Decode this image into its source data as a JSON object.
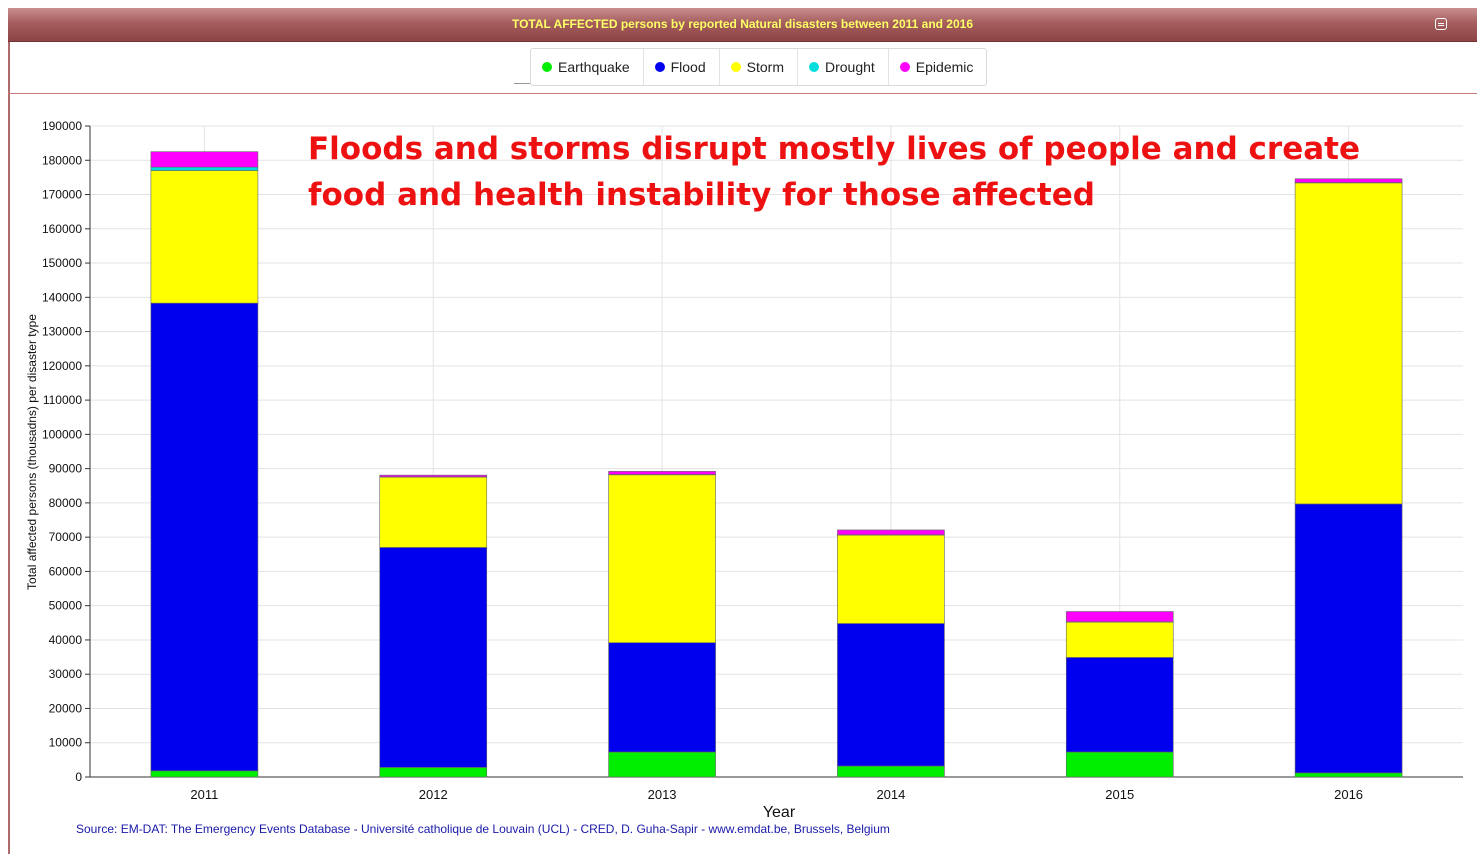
{
  "header": {
    "title": "TOTAL AFFECTED persons by reported Natural disasters between 2011 and 2016"
  },
  "legend": [
    {
      "name": "Earthquake",
      "color": "#00ee00"
    },
    {
      "name": "Flood",
      "color": "#0000ee"
    },
    {
      "name": "Storm",
      "color": "#ffff00"
    },
    {
      "name": "Drought",
      "color": "#00dddd"
    },
    {
      "name": "Epidemic",
      "color": "#ff00ff"
    }
  ],
  "annotation": "Floods and storms disrupt mostly lives of people and create food and health instability for those affected",
  "source": "Source: EM-DAT: The Emergency Events Database - Université catholique de Louvain (UCL) - CRED, D. Guha-Sapir - www.emdat.be, Brussels, Belgium",
  "chart_data": {
    "type": "bar",
    "stacked": true,
    "title": "TOTAL AFFECTED persons by reported Natural disasters between 2011 and 2016",
    "xlabel": "Year",
    "ylabel": "Total affected persons (thousadns) per disaster type",
    "categories": [
      "2011",
      "2012",
      "2013",
      "2014",
      "2015",
      "2016"
    ],
    "ylim": [
      0,
      190000
    ],
    "yticks": [
      0,
      10000,
      20000,
      30000,
      40000,
      50000,
      60000,
      70000,
      80000,
      90000,
      100000,
      110000,
      120000,
      130000,
      140000,
      150000,
      160000,
      170000,
      180000,
      190000
    ],
    "grid": true,
    "legend_position": "top-center",
    "series": [
      {
        "name": "Earthquake",
        "color": "#00ee00",
        "values": [
          1800,
          2800,
          7300,
          3200,
          7300,
          1200
        ]
      },
      {
        "name": "Flood",
        "color": "#0000ee",
        "values": [
          136500,
          64200,
          31900,
          41600,
          27600,
          78500
        ]
      },
      {
        "name": "Storm",
        "color": "#ffff00",
        "values": [
          38700,
          20500,
          49000,
          25800,
          10300,
          93700
        ]
      },
      {
        "name": "Drought",
        "color": "#00dddd",
        "values": [
          1000,
          100,
          100,
          100,
          100,
          100
        ]
      },
      {
        "name": "Epidemic",
        "color": "#ff00ff",
        "values": [
          4500,
          500,
          900,
          1400,
          3000,
          1100
        ]
      }
    ]
  }
}
